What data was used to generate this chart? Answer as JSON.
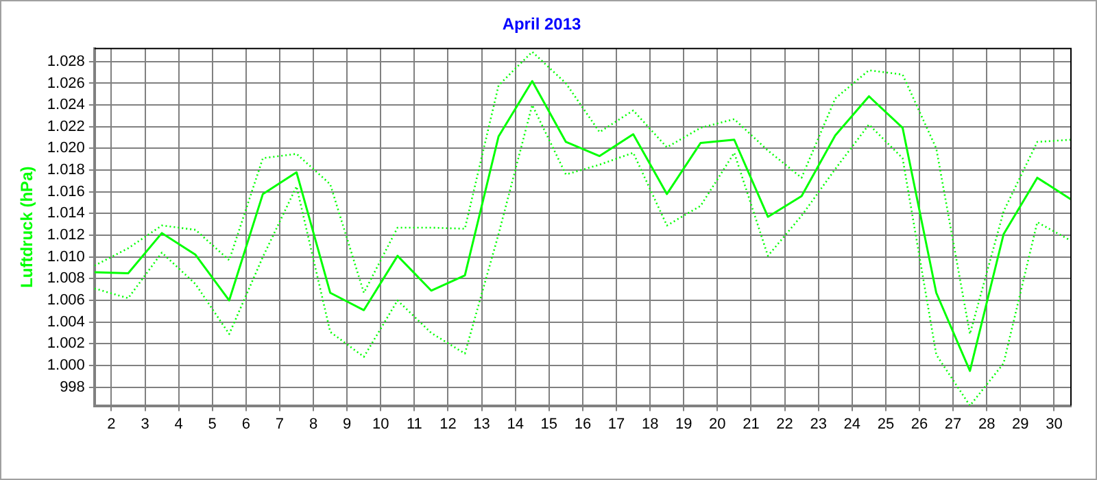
{
  "chart_data": {
    "type": "line",
    "title": "April 2013",
    "ylabel": "Luftdruck (hPa)",
    "x": [
      1.5,
      2.5,
      3.5,
      4.5,
      5.5,
      6.5,
      7.5,
      8.5,
      9.5,
      10.5,
      11.5,
      12.5,
      13.5,
      14.5,
      15.5,
      16.5,
      17.5,
      18.5,
      19.5,
      20.5,
      21.5,
      22.5,
      23.5,
      24.5,
      25.5,
      26.5,
      27.5,
      28.5,
      29.5,
      30.5
    ],
    "series": [
      {
        "color": "#00ff00",
        "line_style": "dotted",
        "values": [
          1009.2,
          1010.8,
          1012.9,
          1012.5,
          1009.7,
          1019.1,
          1019.5,
          1016.7,
          1006.7,
          1012.7,
          1012.7,
          1012.6,
          1025.8,
          1028.9,
          1026.0,
          1021.5,
          1023.5,
          1020.1,
          1021.9,
          1022.7,
          1019.8,
          1017.3,
          1024.6,
          1027.2,
          1026.8,
          1020.0,
          1002.9,
          1014.2,
          1020.6,
          1020.8
        ]
      },
      {
        "color": "#00ff00",
        "line_style": "solid",
        "values": [
          1008.6,
          1008.5,
          1012.2,
          1010.2,
          1006.0,
          1015.8,
          1017.8,
          1006.7,
          1005.1,
          1010.1,
          1006.9,
          1008.3,
          1021.1,
          1026.2,
          1020.6,
          1019.3,
          1021.3,
          1015.8,
          1020.5,
          1020.8,
          1013.7,
          1015.6,
          1021.2,
          1024.8,
          1021.9,
          1006.7,
          999.5,
          1012.1,
          1017.3,
          1015.3
        ]
      },
      {
        "color": "#00ff00",
        "line_style": "dotted",
        "values": [
          1007.1,
          1006.2,
          1010.4,
          1007.5,
          1002.9,
          1010.0,
          1016.5,
          1003.1,
          1000.8,
          1006.0,
          1003.0,
          1001.1,
          1012.1,
          1024.0,
          1017.6,
          1018.5,
          1019.6,
          1012.9,
          1014.7,
          1019.6,
          1010.1,
          1013.8,
          1018.1,
          1022.2,
          1019.1,
          1001.0,
          996.3,
          1000.2,
          1013.2,
          1011.5
        ]
      }
    ],
    "xlim": [
      1.5,
      30.5
    ],
    "xticks": [
      2,
      3,
      4,
      5,
      6,
      7,
      8,
      9,
      10,
      11,
      12,
      13,
      14,
      15,
      16,
      17,
      18,
      19,
      20,
      21,
      22,
      23,
      24,
      25,
      26,
      27,
      28,
      29,
      30
    ],
    "ylim": [
      996.3,
      1029.2
    ],
    "yticks": [
      {
        "value": 998,
        "label": "998"
      },
      {
        "value": 1000,
        "label": "1.000"
      },
      {
        "value": 1002,
        "label": "1.002"
      },
      {
        "value": 1004,
        "label": "1.004"
      },
      {
        "value": 1006,
        "label": "1.006"
      },
      {
        "value": 1008,
        "label": "1.008"
      },
      {
        "value": 1010,
        "label": "1.010"
      },
      {
        "value": 1012,
        "label": "1.012"
      },
      {
        "value": 1014,
        "label": "1.014"
      },
      {
        "value": 1016,
        "label": "1.016"
      },
      {
        "value": 1018,
        "label": "1.018"
      },
      {
        "value": 1020,
        "label": "1.020"
      },
      {
        "value": 1022,
        "label": "1.022"
      },
      {
        "value": 1024,
        "label": "1.024"
      },
      {
        "value": 1026,
        "label": "1.026"
      },
      {
        "value": 1028,
        "label": "1.028"
      }
    ],
    "grid": true,
    "legend": false,
    "marker": "none"
  }
}
